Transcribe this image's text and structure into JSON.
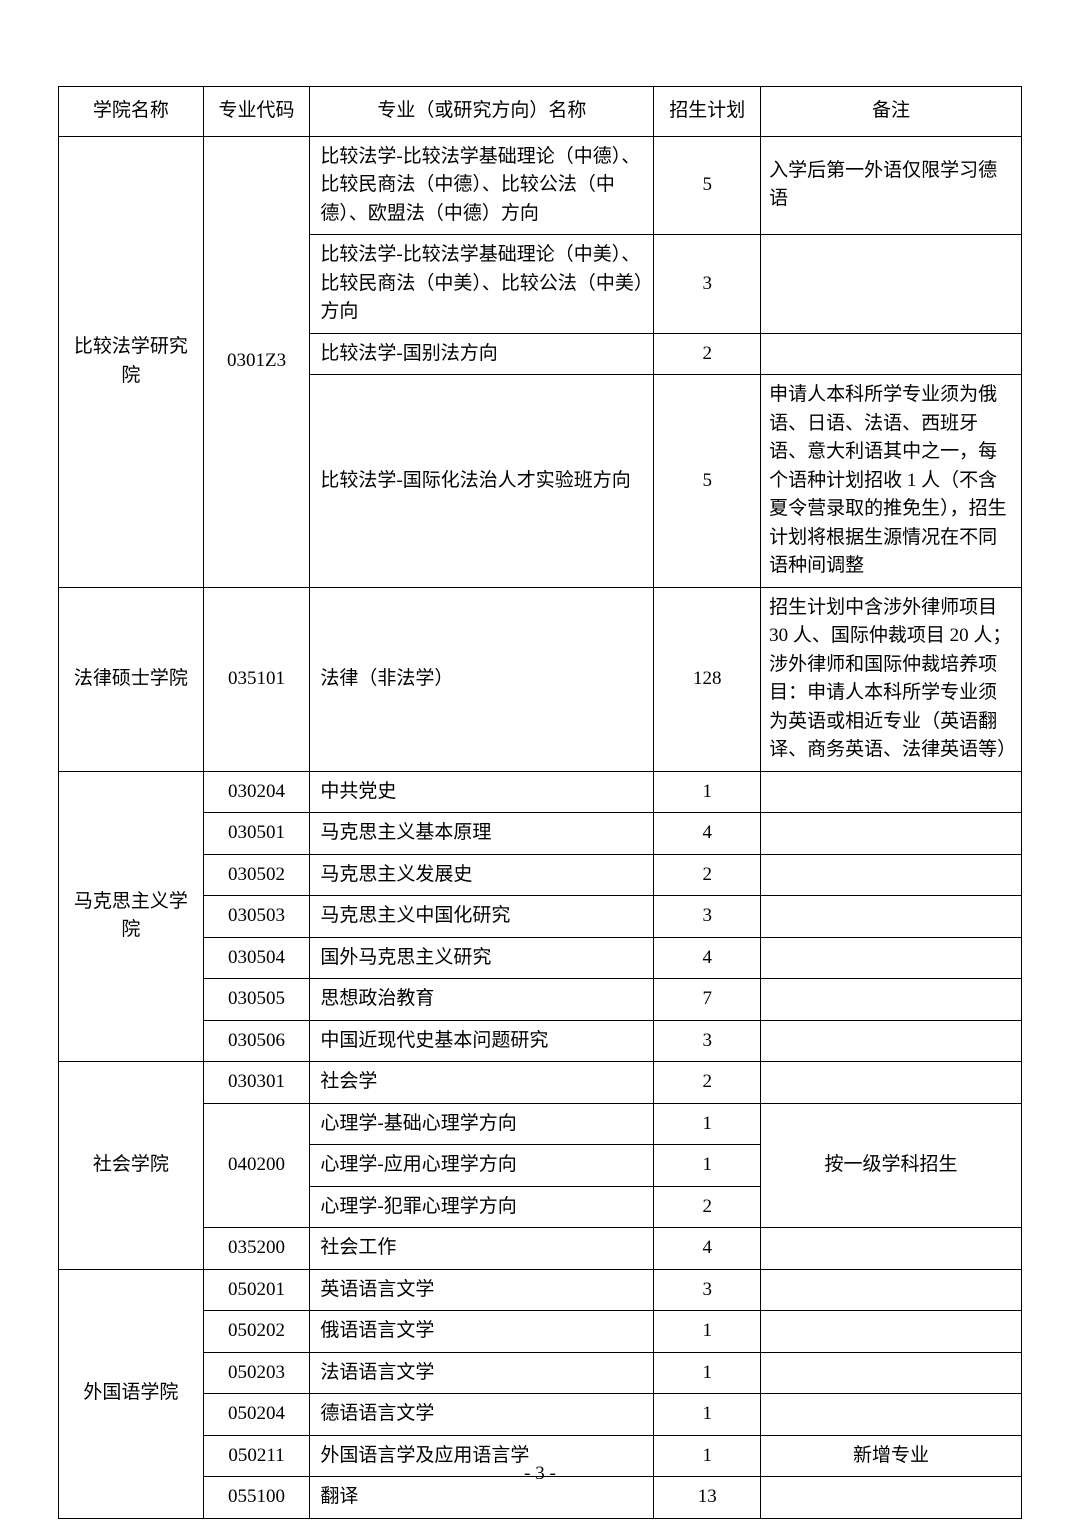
{
  "headers": {
    "school": "学院名称",
    "code": "专业代码",
    "major": "专业（或研究方向）名称",
    "plan": "招生计划",
    "note": "备注"
  },
  "rows": [
    {
      "school": "比较法学研究院",
      "code": "0301Z3",
      "major": "比较法学-比较法学基础理论（中德）、比较民商法（中德）、比较公法（中德）、欧盟法（中德）方向",
      "plan": "5",
      "note": "入学后第一外语仅限学习德语"
    },
    {
      "major": "比较法学-比较法学基础理论（中美）、比较民商法（中美）、比较公法（中美）方向",
      "plan": "3",
      "note": ""
    },
    {
      "major": "比较法学-国别法方向",
      "plan": "2",
      "note": ""
    },
    {
      "major": "比较法学-国际化法治人才实验班方向",
      "plan": "5",
      "note": "申请人本科所学专业须为俄语、日语、法语、西班牙语、意大利语其中之一，每个语种计划招收 1 人（不含夏令营录取的推免生），招生计划将根据生源情况在不同语种间调整"
    },
    {
      "school": "法律硕士学院",
      "code": "035101",
      "major": "法律（非法学）",
      "plan": "128",
      "note": "招生计划中含涉外律师项目30 人、国际仲裁项目 20 人；涉外律师和国际仲裁培养项目：申请人本科所学专业须为英语或相近专业（英语翻译、商务英语、法律英语等）"
    },
    {
      "school": "马克思主义学院",
      "code": "030204",
      "major": "中共党史",
      "plan": "1",
      "note": ""
    },
    {
      "code": "030501",
      "major": "马克思主义基本原理",
      "plan": "4",
      "note": ""
    },
    {
      "code": "030502",
      "major": "马克思主义发展史",
      "plan": "2",
      "note": ""
    },
    {
      "code": "030503",
      "major": "马克思主义中国化研究",
      "plan": "3",
      "note": ""
    },
    {
      "code": "030504",
      "major": "国外马克思主义研究",
      "plan": "4",
      "note": ""
    },
    {
      "code": "030505",
      "major": "思想政治教育",
      "plan": "7",
      "note": ""
    },
    {
      "code": "030506",
      "major": "中国近现代史基本问题研究",
      "plan": "3",
      "note": ""
    },
    {
      "school": "社会学院",
      "code": "030301",
      "major": "社会学",
      "plan": "2",
      "note": ""
    },
    {
      "code": "040200",
      "major": "心理学-基础心理学方向",
      "plan": "1",
      "note": "按一级学科招生"
    },
    {
      "major": "心理学-应用心理学方向",
      "plan": "1"
    },
    {
      "major": "心理学-犯罪心理学方向",
      "plan": "2"
    },
    {
      "code": "035200",
      "major": "社会工作",
      "plan": "4",
      "note": ""
    },
    {
      "school": "外国语学院",
      "code": "050201",
      "major": "英语语言文学",
      "plan": "3",
      "note": ""
    },
    {
      "code": "050202",
      "major": "俄语语言文学",
      "plan": "1",
      "note": ""
    },
    {
      "code": "050203",
      "major": "法语语言文学",
      "plan": "1",
      "note": ""
    },
    {
      "code": "050204",
      "major": "德语语言文学",
      "plan": "1",
      "note": ""
    },
    {
      "code": "050211",
      "major": "外国语言学及应用语言学",
      "plan": "1",
      "note": "新增专业",
      "noteCenter": true
    },
    {
      "code": "055100",
      "major": "翻译",
      "plan": "13",
      "note": ""
    }
  ],
  "pageNumber": "- 3 -"
}
